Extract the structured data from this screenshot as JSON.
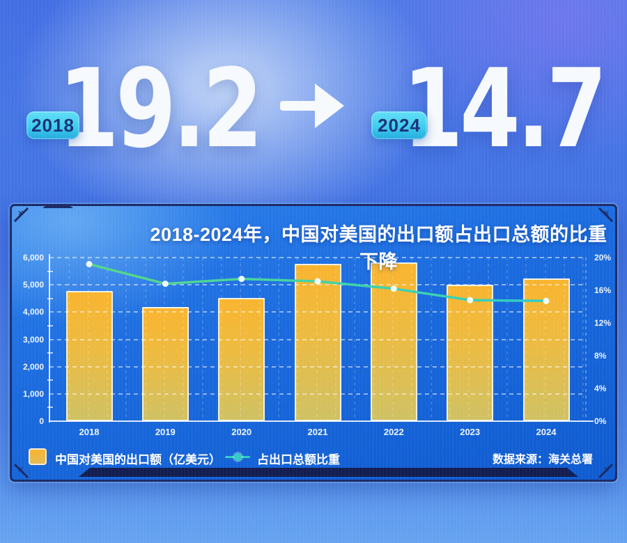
{
  "header": {
    "from_year": "2018",
    "from_value": "19.2",
    "to_year": "2024",
    "to_value": "14.7"
  },
  "panel": {
    "corner_mark": "✕"
  },
  "chart_data": {
    "type": "combo-bar-line",
    "title": "2018-2024年，中国对美国的出口额占出口总额的比重下降",
    "categories": [
      "2018",
      "2019",
      "2020",
      "2021",
      "2022",
      "2023",
      "2024"
    ],
    "series": [
      {
        "name": "中国对美国的出口额（亿美元）",
        "type": "bar",
        "axis": "left",
        "values": [
          4784,
          4187,
          4518,
          5761,
          5817,
          5003,
          5246
        ]
      },
      {
        "name": "占出口总额比重",
        "type": "line",
        "axis": "right",
        "unit": "%",
        "values": [
          19.2,
          16.8,
          17.4,
          17.1,
          16.2,
          14.8,
          14.7
        ]
      }
    ],
    "left_axis": {
      "min": 0,
      "max": 6000,
      "step": 1000,
      "tick_labels": [
        "0",
        "1,000",
        "2,000",
        "3,000",
        "4,000",
        "5,000",
        "6,000"
      ]
    },
    "right_axis": {
      "min": 0,
      "max": 20,
      "step": 4,
      "tick_labels": [
        "0%",
        "4%",
        "8%",
        "12%",
        "16%",
        "20%"
      ]
    },
    "grid": "dashed horizontal and vertical",
    "legend_position": "bottom-left",
    "source": "数据来源：海关总署"
  },
  "colors": {
    "background_blue": "#4272e3",
    "panel_frame_navy": "#1b2a66",
    "bar_top": "#f9b42e",
    "bar_bottom": "#cfc163",
    "line_green": "#55d787",
    "line_teal": "#2fcdc4",
    "badge_cyan": "#3ecdee",
    "badge_text_navy": "#1c3178",
    "text_white": "#f6f9fd"
  }
}
